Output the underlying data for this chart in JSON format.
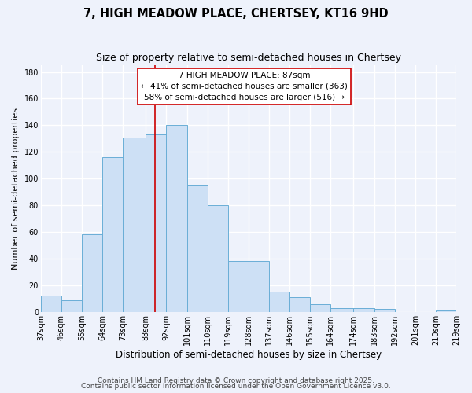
{
  "title1": "7, HIGH MEADOW PLACE, CHERTSEY, KT16 9HD",
  "title2": "Size of property relative to semi-detached houses in Chertsey",
  "xlabel": "Distribution of semi-detached houses by size in Chertsey",
  "ylabel": "Number of semi-detached properties",
  "bin_labels": [
    "37sqm",
    "46sqm",
    "55sqm",
    "64sqm",
    "73sqm",
    "83sqm",
    "92sqm",
    "101sqm",
    "110sqm",
    "119sqm",
    "128sqm",
    "137sqm",
    "146sqm",
    "155sqm",
    "164sqm",
    "174sqm",
    "183sqm",
    "192sqm",
    "201sqm",
    "210sqm",
    "219sqm"
  ],
  "bin_edges": [
    37,
    46,
    55,
    64,
    73,
    83,
    92,
    101,
    110,
    119,
    128,
    137,
    146,
    155,
    164,
    174,
    183,
    192,
    201,
    210,
    219
  ],
  "bar_heights": [
    12,
    9,
    58,
    116,
    131,
    133,
    140,
    95,
    80,
    38,
    38,
    15,
    11,
    6,
    3,
    3,
    2,
    0,
    0,
    1
  ],
  "bar_color": "#cde0f5",
  "bar_edge_color": "#6aaed6",
  "property_size": 87,
  "vline_color": "#cc0000",
  "annotation_line1": "7 HIGH MEADOW PLACE: 87sqm",
  "annotation_line2": "← 41% of semi-detached houses are smaller (363)",
  "annotation_line3": "58% of semi-detached houses are larger (516) →",
  "annotation_box_edge": "#cc0000",
  "annotation_box_face": "#ffffff",
  "ylim": [
    0,
    185
  ],
  "yticks": [
    0,
    20,
    40,
    60,
    80,
    100,
    120,
    140,
    160,
    180
  ],
  "footer1": "Contains HM Land Registry data © Crown copyright and database right 2025.",
  "footer2": "Contains public sector information licensed under the Open Government Licence v3.0.",
  "background_color": "#eef2fb",
  "grid_color": "#ffffff",
  "title1_fontsize": 10.5,
  "title2_fontsize": 9,
  "xlabel_fontsize": 8.5,
  "ylabel_fontsize": 8,
  "tick_fontsize": 7,
  "footer_fontsize": 6.5,
  "ann_fontsize": 7.5
}
